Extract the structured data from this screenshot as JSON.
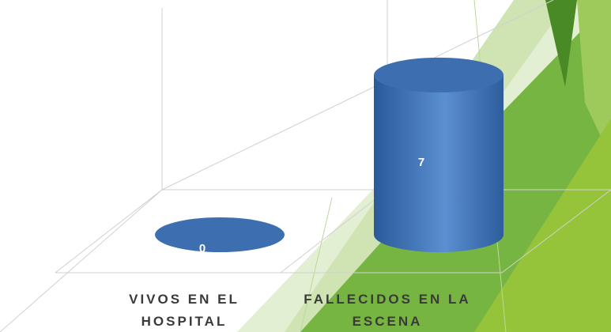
{
  "chart_data": {
    "type": "bar3d",
    "categories": [
      "VIVOS EN EL HOSPITAL",
      "FALLECIDOS EN LA ESCENA"
    ],
    "values": [
      0,
      7
    ],
    "color": "#3d6fb0",
    "ylim": [
      0,
      8
    ]
  }
}
